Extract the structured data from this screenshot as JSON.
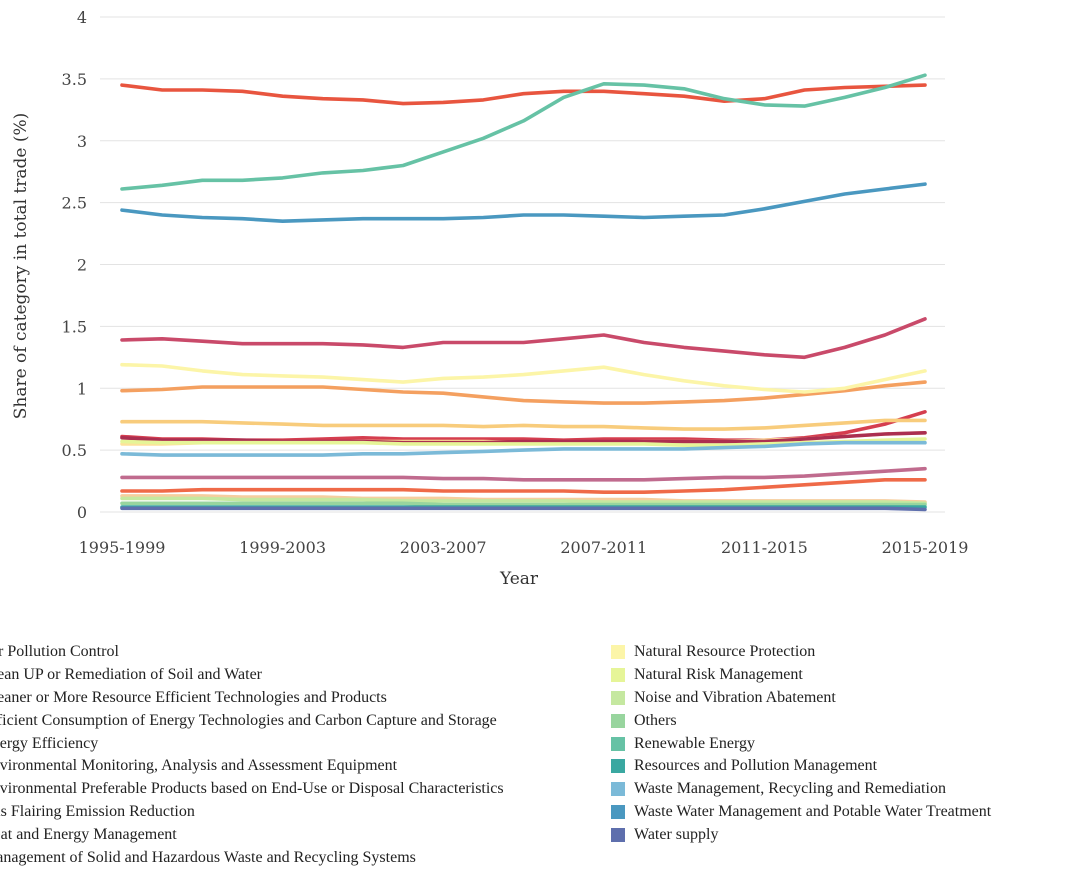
{
  "chart_data": {
    "type": "line",
    "xlabel": "Year",
    "ylabel": "Share of category in total trade (%)",
    "ylim": [
      0,
      4
    ],
    "yticks": [
      "0",
      "0.5",
      "1",
      "1.5",
      "2",
      "2.5",
      "3",
      "3.5",
      "4"
    ],
    "x_tick_labels": [
      "1995-1999",
      "1999-2003",
      "2003-2007",
      "2007-2011",
      "2011-2015",
      "2015-2019"
    ],
    "grid": "horizontal",
    "legend_position": "bottom",
    "points_per_series": 21,
    "series": [
      {
        "name": "Air Pollution Control",
        "color": "#d53e4f",
        "values": [
          0.61,
          0.59,
          0.59,
          0.58,
          0.58,
          0.59,
          0.6,
          0.59,
          0.59,
          0.59,
          0.59,
          0.58,
          0.59,
          0.59,
          0.59,
          0.58,
          0.58,
          0.6,
          0.64,
          0.71,
          0.81
        ]
      },
      {
        "name": "Clean UP or Remediation of Soil and Water",
        "color": "#e8553f",
        "values": [
          3.45,
          3.41,
          3.41,
          3.4,
          3.36,
          3.34,
          3.33,
          3.3,
          3.31,
          3.33,
          3.38,
          3.4,
          3.4,
          3.38,
          3.36,
          3.32,
          3.34,
          3.41,
          3.43,
          3.44,
          3.45
        ]
      },
      {
        "name": "Cleaner or More Resource Efficient Technologies and Products",
        "color": "#ef6a48",
        "values": [
          0.17,
          0.17,
          0.18,
          0.18,
          0.18,
          0.18,
          0.18,
          0.18,
          0.17,
          0.17,
          0.17,
          0.17,
          0.16,
          0.16,
          0.17,
          0.18,
          0.2,
          0.22,
          0.24,
          0.26,
          0.26
        ]
      },
      {
        "name": "Efficient Consumption of Energy Technologies and Carbon Capture and Storage",
        "color": "#f4a060",
        "values": [
          0.98,
          0.99,
          1.01,
          1.01,
          1.01,
          1.01,
          0.99,
          0.97,
          0.96,
          0.93,
          0.9,
          0.89,
          0.88,
          0.88,
          0.89,
          0.9,
          0.92,
          0.95,
          0.98,
          1.02,
          1.05
        ]
      },
      {
        "name": "Energy Efficiency",
        "color": "#f8cc7c",
        "values": [
          0.73,
          0.73,
          0.73,
          0.72,
          0.71,
          0.7,
          0.7,
          0.7,
          0.7,
          0.69,
          0.7,
          0.69,
          0.69,
          0.68,
          0.67,
          0.67,
          0.68,
          0.7,
          0.72,
          0.74,
          0.74
        ]
      },
      {
        "name": "Environmental Monitoring, Analysis and Assessment Equipment",
        "color": "#fde29a",
        "values": [
          0.55,
          0.55,
          0.56,
          0.56,
          0.56,
          0.56,
          0.57,
          0.57,
          0.57,
          0.57,
          0.56,
          0.56,
          0.56,
          0.57,
          0.57,
          0.57,
          0.58,
          0.59,
          0.61,
          0.63,
          0.64
        ]
      },
      {
        "name": "Environmental Preferable Products based on End-Use or Disposal Characteristics",
        "color": "#c94a6a",
        "values": [
          1.39,
          1.4,
          1.38,
          1.36,
          1.36,
          1.36,
          1.35,
          1.33,
          1.37,
          1.37,
          1.37,
          1.4,
          1.43,
          1.37,
          1.33,
          1.3,
          1.27,
          1.25,
          1.33,
          1.43,
          1.56
        ]
      },
      {
        "name": "Gas Flairing Emission Reduction",
        "color": "#f6ce9f",
        "values": [
          0.13,
          0.13,
          0.13,
          0.12,
          0.12,
          0.12,
          0.11,
          0.11,
          0.11,
          0.1,
          0.1,
          0.1,
          0.1,
          0.1,
          0.09,
          0.09,
          0.09,
          0.09,
          0.09,
          0.09,
          0.08
        ]
      },
      {
        "name": "Heat and Energy Management",
        "color": "#c06b8e",
        "values": [
          0.28,
          0.28,
          0.28,
          0.28,
          0.28,
          0.28,
          0.28,
          0.28,
          0.27,
          0.27,
          0.26,
          0.26,
          0.26,
          0.26,
          0.27,
          0.28,
          0.28,
          0.29,
          0.31,
          0.33,
          0.35
        ]
      },
      {
        "name": "Management of Solid and Hazardous Waste and Recycling Systems",
        "color": "#ab2f50",
        "values": [
          0.6,
          0.58,
          0.58,
          0.58,
          0.57,
          0.57,
          0.57,
          0.56,
          0.56,
          0.56,
          0.57,
          0.57,
          0.57,
          0.57,
          0.57,
          0.57,
          0.57,
          0.59,
          0.61,
          0.63,
          0.64
        ]
      },
      {
        "name": "Natural Resource Protection",
        "color": "#fcf5a8",
        "values": [
          1.19,
          1.18,
          1.14,
          1.11,
          1.1,
          1.09,
          1.07,
          1.05,
          1.08,
          1.09,
          1.11,
          1.14,
          1.17,
          1.11,
          1.06,
          1.02,
          0.99,
          0.97,
          1.0,
          1.07,
          1.14
        ]
      },
      {
        "name": "Natural Risk Management",
        "color": "#e6f598",
        "values": [
          0.57,
          0.56,
          0.56,
          0.56,
          0.56,
          0.56,
          0.56,
          0.55,
          0.55,
          0.55,
          0.55,
          0.55,
          0.55,
          0.55,
          0.54,
          0.54,
          0.55,
          0.56,
          0.57,
          0.58,
          0.59
        ]
      },
      {
        "name": "Noise and Vibration Abatement",
        "color": "#c5e8a0",
        "values": [
          0.11,
          0.11,
          0.11,
          0.1,
          0.1,
          0.1,
          0.1,
          0.09,
          0.09,
          0.09,
          0.09,
          0.09,
          0.08,
          0.08,
          0.08,
          0.08,
          0.08,
          0.08,
          0.08,
          0.08,
          0.07
        ]
      },
      {
        "name": "Others",
        "color": "#98d59e",
        "values": [
          0.07,
          0.07,
          0.07,
          0.07,
          0.07,
          0.07,
          0.07,
          0.07,
          0.06,
          0.06,
          0.06,
          0.06,
          0.06,
          0.06,
          0.06,
          0.06,
          0.06,
          0.06,
          0.06,
          0.06,
          0.06
        ]
      },
      {
        "name": "Renewable Energy",
        "color": "#66c2a5",
        "values": [
          2.61,
          2.64,
          2.68,
          2.68,
          2.7,
          2.74,
          2.76,
          2.8,
          2.91,
          3.02,
          3.16,
          3.35,
          3.46,
          3.45,
          3.42,
          3.34,
          3.29,
          3.28,
          3.35,
          3.43,
          3.53
        ]
      },
      {
        "name": "Resources and Pollution Management",
        "color": "#3aa8a1",
        "values": [
          0.04,
          0.04,
          0.04,
          0.04,
          0.04,
          0.04,
          0.04,
          0.04,
          0.04,
          0.04,
          0.04,
          0.04,
          0.04,
          0.04,
          0.04,
          0.04,
          0.04,
          0.04,
          0.04,
          0.04,
          0.04
        ]
      },
      {
        "name": "Waste Management, Recycling and Remediation",
        "color": "#7bbad8",
        "values": [
          0.47,
          0.46,
          0.46,
          0.46,
          0.46,
          0.46,
          0.47,
          0.47,
          0.48,
          0.49,
          0.5,
          0.51,
          0.51,
          0.51,
          0.51,
          0.52,
          0.53,
          0.55,
          0.56,
          0.56,
          0.56
        ]
      },
      {
        "name": "Waste Water Management and Potable Water Treatment",
        "color": "#4a98c0",
        "values": [
          2.44,
          2.4,
          2.38,
          2.37,
          2.35,
          2.36,
          2.37,
          2.37,
          2.37,
          2.38,
          2.4,
          2.4,
          2.39,
          2.38,
          2.39,
          2.4,
          2.45,
          2.51,
          2.57,
          2.61,
          2.65
        ]
      },
      {
        "name": "Water supply",
        "color": "#5e6fad",
        "values": [
          0.03,
          0.03,
          0.03,
          0.03,
          0.03,
          0.03,
          0.03,
          0.03,
          0.03,
          0.03,
          0.03,
          0.03,
          0.03,
          0.03,
          0.03,
          0.03,
          0.03,
          0.03,
          0.03,
          0.03,
          0.02
        ]
      }
    ]
  }
}
